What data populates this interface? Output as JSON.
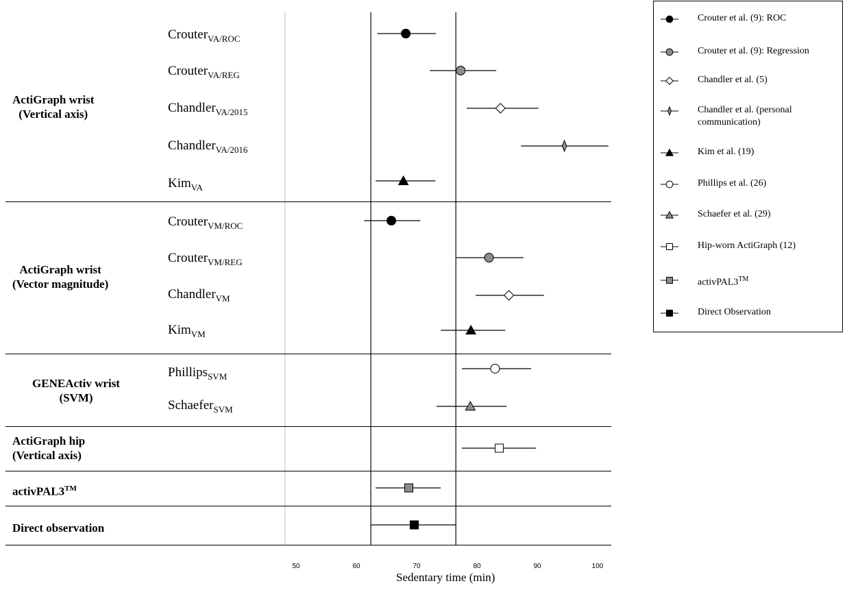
{
  "chart_data": {
    "type": "forest",
    "xlabel": "Sedentary time (min)",
    "xlim": [
      48,
      102
    ],
    "xticks": [
      50,
      60,
      70,
      80,
      90,
      100
    ],
    "reference_lines": [
      62.4,
      76.5
    ],
    "groups": [
      {
        "label_line1": "ActiGraph wrist",
        "label_line2": "(Vertical axis)"
      },
      {
        "label_line1": "ActiGraph wrist",
        "label_line2": "(Vector magnitude)"
      },
      {
        "label_line1": "GENEActiv wrist",
        "label_line2": "(SVM)"
      },
      {
        "label_line1": "ActiGraph hip",
        "label_line2": "(Vertical axis)"
      },
      {
        "label_line1": "activPAL3",
        "label_sup": "TM"
      },
      {
        "label_line1": "Direct observation"
      }
    ],
    "rows": [
      {
        "name": "Crouter",
        "sub": "VA/ROC",
        "estimate": 68.2,
        "lower": 63.5,
        "upper": 73.2,
        "marker": "circle-black"
      },
      {
        "name": "Crouter",
        "sub": "VA/REG",
        "estimate": 77.3,
        "lower": 72.2,
        "upper": 83.2,
        "marker": "circle-gray"
      },
      {
        "name": "Chandler",
        "sub": "VA/2015",
        "estimate": 83.9,
        "lower": 78.3,
        "upper": 90.2,
        "marker": "diamond-white"
      },
      {
        "name": "Chandler",
        "sub": "VA/2016",
        "estimate": 94.5,
        "lower": 87.3,
        "upper": 101.8,
        "marker": "star4-gray"
      },
      {
        "name": "Kim",
        "sub": "VA",
        "estimate": 67.8,
        "lower": 63.2,
        "upper": 73.1,
        "marker": "triangle-black"
      },
      {
        "name": "Crouter",
        "sub": "VM/ROC",
        "estimate": 65.8,
        "lower": 61.3,
        "upper": 70.6,
        "marker": "circle-black"
      },
      {
        "name": "Crouter",
        "sub": "VM/REG",
        "estimate": 82.0,
        "lower": 76.6,
        "upper": 87.7,
        "marker": "circle-gray"
      },
      {
        "name": "Chandler",
        "sub": "VM",
        "estimate": 85.3,
        "lower": 79.8,
        "upper": 91.1,
        "marker": "diamond-white"
      },
      {
        "name": "Kim",
        "sub": "VM",
        "estimate": 79.0,
        "lower": 74.0,
        "upper": 84.7,
        "marker": "triangle-black"
      },
      {
        "name": "Phillips",
        "sub": "SVM",
        "estimate": 83.0,
        "lower": 77.5,
        "upper": 89.0,
        "marker": "circle-white"
      },
      {
        "name": "Schaefer",
        "sub": "SVM",
        "estimate": 78.9,
        "lower": 73.3,
        "upper": 84.9,
        "marker": "triangle-gray"
      },
      {
        "name": "",
        "sub": "",
        "estimate": 83.7,
        "lower": 77.5,
        "upper": 89.8,
        "marker": "square-white"
      },
      {
        "name": "",
        "sub": "",
        "estimate": 68.7,
        "lower": 63.2,
        "upper": 74.0,
        "marker": "square-gray"
      },
      {
        "name": "",
        "sub": "",
        "estimate": 69.6,
        "lower": 62.4,
        "upper": 76.5,
        "marker": "square-black"
      }
    ],
    "legend": [
      {
        "marker": "circle-black",
        "label": "Crouter et al. (9): ROC"
      },
      {
        "marker": "circle-gray",
        "label": "Crouter et al. (9): Regression"
      },
      {
        "marker": "diamond-white",
        "label": "Chandler et al. (5)"
      },
      {
        "marker": "star4-gray",
        "label": "Chandler et al. (personal communication)"
      },
      {
        "marker": "triangle-black",
        "label": "Kim et al.  (19)"
      },
      {
        "marker": "circle-white",
        "label": "Phillips et al. (26)"
      },
      {
        "marker": "triangle-gray",
        "label": "Schaefer et al.  (29)"
      },
      {
        "marker": "square-white",
        "label": "Hip-worn ActiGraph (12)"
      },
      {
        "marker": "square-gray",
        "label": "activPAL3",
        "sup": "TM"
      },
      {
        "marker": "square-black",
        "label": "Direct Observation"
      }
    ],
    "legend_position": "right",
    "grid": false
  },
  "colors": {
    "black": "#000000",
    "gray": "#8c8c8c",
    "white": "#ffffff",
    "axis_baseline": "#c8c8c8"
  }
}
